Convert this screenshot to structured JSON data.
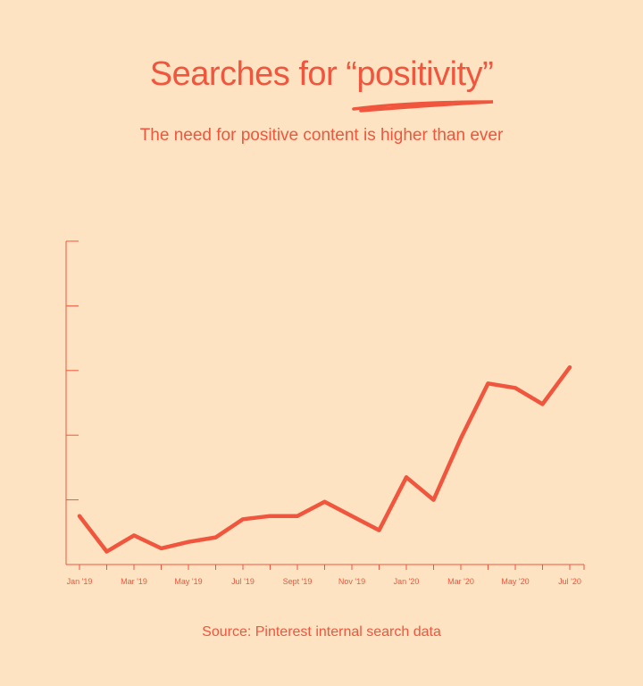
{
  "header": {
    "title_prefix": "Searches for ",
    "title_highlight": "“positivity”",
    "subtitle": "The need for positive content is higher than ever"
  },
  "footer": {
    "source": "Source: Pinterest internal search data"
  },
  "colors": {
    "background": "#fde3c1",
    "accent": "#f0553e"
  },
  "chart_data": {
    "type": "line",
    "title": "Searches for “positivity”",
    "subtitle": "The need for positive content is higher than ever",
    "xlabel": "",
    "ylabel": "",
    "tick_labels": [
      "Jan '19",
      "Mar '19",
      "May '19",
      "Jul '19",
      "Sept '19",
      "Nov '19",
      "Jan '20",
      "Mar '20",
      "May '20",
      "Jul '20"
    ],
    "tick_positions": [
      0,
      2,
      4,
      6,
      8,
      10,
      12,
      14,
      16,
      18
    ],
    "x": [
      0,
      1,
      2,
      3,
      4,
      5,
      6,
      7,
      8,
      9,
      10,
      11,
      12,
      13,
      14,
      15,
      16,
      17,
      18
    ],
    "values": [
      0.75,
      0.2,
      0.45,
      0.25,
      0.35,
      0.42,
      0.7,
      0.75,
      0.75,
      0.97,
      0.75,
      0.53,
      1.35,
      1.0,
      1.95,
      2.8,
      2.73,
      2.48,
      3.05
    ],
    "ylim": [
      0,
      5
    ],
    "y_ticks": 5,
    "grid": false,
    "legend": "none"
  }
}
